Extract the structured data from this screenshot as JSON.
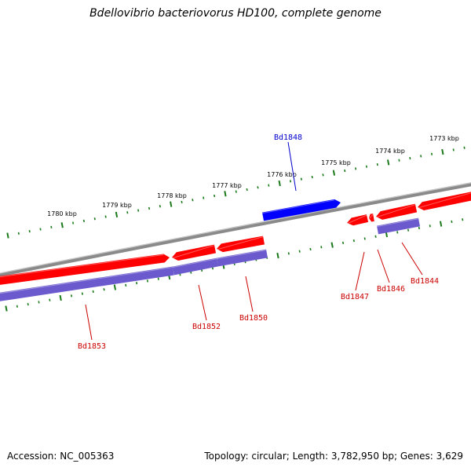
{
  "title": "Bdellovibrio bacteriovorus HD100, complete genome",
  "footer": {
    "accession": "Accession: NC_005363",
    "stats": "Topology: circular; Length: 3,782,950 bp; Genes: 3,629"
  },
  "colors": {
    "backbone": "#8a8a8a",
    "tick": "#1a7a1a",
    "gene_forward": "#ff0000",
    "gene_reverse": "#0000ff",
    "gene_other": "#6a5acd",
    "label_red": "#cc0000",
    "label_blue": "#0000cc"
  },
  "scale": {
    "unit": "kbp",
    "ticks": [
      {
        "label": "1773 kbp"
      },
      {
        "label": "1774 kbp"
      },
      {
        "label": "1775 kbp"
      },
      {
        "label": "1776 kbp"
      },
      {
        "label": "1777 kbp"
      },
      {
        "label": "1778 kbp"
      },
      {
        "label": "1779 kbp"
      },
      {
        "label": "1780 kbp"
      }
    ]
  },
  "genes": [
    {
      "id": "Bd1848",
      "color": "blue"
    },
    {
      "id": "Bd1847",
      "color": "red"
    },
    {
      "id": "Bd1846",
      "color": "red"
    },
    {
      "id": "Bd1844",
      "color": "red"
    },
    {
      "id": "Bd1850",
      "color": "red"
    },
    {
      "id": "Bd1852",
      "color": "red"
    },
    {
      "id": "Bd1853",
      "color": "red"
    }
  ]
}
